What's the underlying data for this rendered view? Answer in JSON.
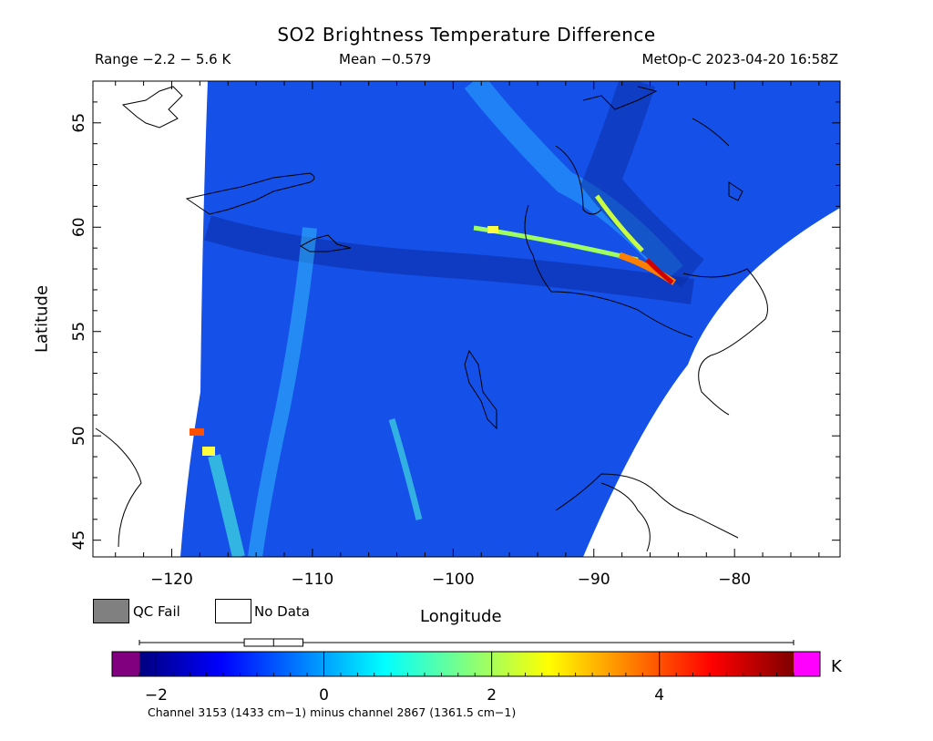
{
  "header": {
    "title": "SO2 Brightness Temperature Difference",
    "range": "Range −2.2 − 5.6 K",
    "mean": "Mean −0.579",
    "satellite": "MetOp-C 2023-04-20 16:58Z"
  },
  "map": {
    "xlabel": "Longitude",
    "ylabel": "Latitude",
    "lon_range": [
      -125.6,
      -72.5
    ],
    "lat_range": [
      44.2,
      67.0
    ],
    "lon_ticks": [
      -120,
      -110,
      -100,
      -90,
      -80
    ],
    "lat_ticks": [
      45,
      50,
      55,
      60,
      65
    ],
    "lon_tick_labels": [
      "−120",
      "−110",
      "−100",
      "−90",
      "−80"
    ],
    "lat_tick_labels": [
      "45",
      "50",
      "55",
      "60",
      "65"
    ]
  },
  "legend": {
    "qc_fail": "QC Fail",
    "no_data": "No Data",
    "qc_color": "#808080",
    "no_data_color": "#ffffff"
  },
  "colorbar": {
    "unit": "K",
    "min": -2.2,
    "max": 5.6,
    "ticks": [
      -2,
      0,
      2,
      4
    ],
    "tick_labels": [
      "−2",
      "0",
      "2",
      "4"
    ],
    "under_color": "#800080",
    "over_color": "#ff00ff",
    "stops": [
      "#00007f",
      "#0000ff",
      "#0080ff",
      "#00ffff",
      "#80ff80",
      "#ffff00",
      "#ff8000",
      "#ff0000",
      "#7f0000"
    ],
    "boxplot": {
      "min": -2.2,
      "q1": -0.95,
      "median": -0.6,
      "q3": -0.25,
      "max": 5.6
    }
  },
  "footnote": "Channel 3153 (1433 cm−1) minus channel 2867 (1361.5 cm−1)"
}
